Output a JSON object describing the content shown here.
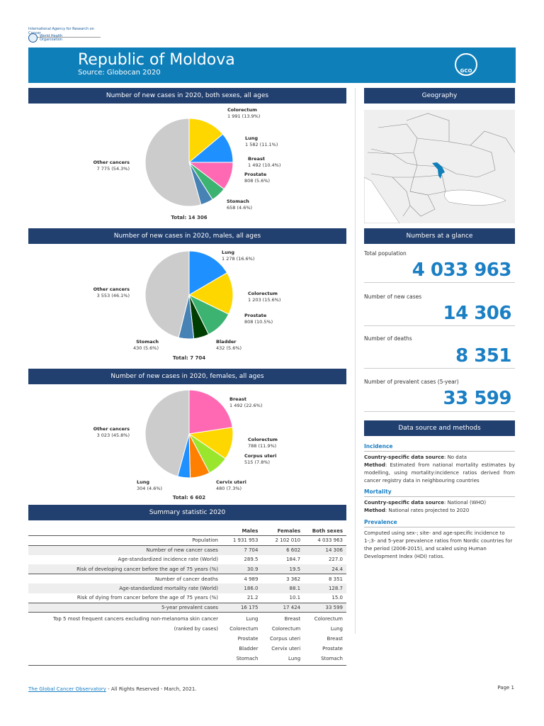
{
  "header": {
    "org_iarc": "International Agency for Research on Cancer",
    "org_who": "World Health Organization",
    "title": "Republic of Moldova",
    "source": "Source: Globocan 2020",
    "logo_text": "GCO"
  },
  "sections": {
    "pie_both": "Number of new cases in 2020, both sexes, all ages",
    "pie_males": "Number of new cases in 2020, males, all ages",
    "pie_females": "Number of new cases in 2020, females, all ages",
    "summary": "Summary statistic 2020",
    "geography": "Geography",
    "glance": "Numbers at a glance",
    "datasource": "Data source and methods"
  },
  "chart_data": [
    {
      "type": "pie",
      "title": "Number of new cases in 2020, both sexes, all ages",
      "total": "Total: 14 306",
      "slices": [
        {
          "name": "Colorectum",
          "value": 1991,
          "label": "1 991 (13.9%)",
          "color": "#ffd700"
        },
        {
          "name": "Lung",
          "value": 1582,
          "label": "1 582 (11.1%)",
          "color": "#1e90ff"
        },
        {
          "name": "Breast",
          "value": 1492,
          "label": "1 492 (10.4%)",
          "color": "#ff69b4"
        },
        {
          "name": "Prostate",
          "value": 808,
          "label": "808 (5.6%)",
          "color": "#3cb371"
        },
        {
          "name": "Stomach",
          "value": 658,
          "label": "658 (4.6%)",
          "color": "#4682b4"
        },
        {
          "name": "Other cancers",
          "value": 7775,
          "label": "7 775 (54.3%)",
          "color": "#cccccc"
        }
      ]
    },
    {
      "type": "pie",
      "title": "Number of new cases in 2020, males, all ages",
      "total": "Total: 7 704",
      "slices": [
        {
          "name": "Lung",
          "value": 1278,
          "label": "1 278 (16.6%)",
          "color": "#1e90ff"
        },
        {
          "name": "Colorectum",
          "value": 1203,
          "label": "1 203 (15.6%)",
          "color": "#ffd700"
        },
        {
          "name": "Prostate",
          "value": 808,
          "label": "808 (10.5%)",
          "color": "#3cb371"
        },
        {
          "name": "Bladder",
          "value": 432,
          "label": "432 (5.6%)",
          "color": "#003d00"
        },
        {
          "name": "Stomach",
          "value": 430,
          "label": "430 (5.6%)",
          "color": "#4682b4"
        },
        {
          "name": "Other cancers",
          "value": 3553,
          "label": "3 553 (46.1%)",
          "color": "#cccccc"
        }
      ]
    },
    {
      "type": "pie",
      "title": "Number of new cases in 2020, females, all ages",
      "total": "Total: 6 602",
      "slices": [
        {
          "name": "Breast",
          "value": 1492,
          "label": "1 492 (22.6%)",
          "color": "#ff69b4"
        },
        {
          "name": "Colorectum",
          "value": 788,
          "label": "788 (11.9%)",
          "color": "#ffd700"
        },
        {
          "name": "Corpus uteri",
          "value": 515,
          "label": "515 (7.8%)",
          "color": "#9ae62d"
        },
        {
          "name": "Cervix uteri",
          "value": 480,
          "label": "480 (7.3%)",
          "color": "#ff7f00"
        },
        {
          "name": "Lung",
          "value": 304,
          "label": "304 (4.6%)",
          "color": "#1e90ff"
        },
        {
          "name": "Other cancers",
          "value": 3023,
          "label": "3 023 (45.8%)",
          "color": "#cccccc"
        }
      ]
    }
  ],
  "glance": [
    {
      "label": "Total population",
      "value": "4 033 963"
    },
    {
      "label": "Number of new cases",
      "value": "14 306"
    },
    {
      "label": "Number of deaths",
      "value": "8 351"
    },
    {
      "label": "Number of prevalent cases (5-year)",
      "value": "33 599"
    }
  ],
  "datasource": {
    "incidence": {
      "heading": "Incidence",
      "src_label": "Country-specific data source",
      "src_value": ": No data",
      "method_label": "Method",
      "method_value": ": Estimated from national mortality estimates by modelling, using mortality:incidence ratios derived from cancer registry data in neighbouring countries"
    },
    "mortality": {
      "heading": "Mortality",
      "src_label": "Country-specific data source",
      "src_value": ": National (WHO)",
      "method_label": "Method",
      "method_value": ": National rates projected to 2020"
    },
    "prevalence": {
      "heading": "Prevalence",
      "text": "Computed using sex-; site- and age-specific incidence to 1-;3- and 5-year prevalence ratios from Nordic countries for the period (2006-2015), and scaled using Human Development Index (HDI) ratios."
    }
  },
  "summary": {
    "columns": [
      "",
      "Males",
      "Females",
      "Both sexes"
    ],
    "rows": [
      [
        "Population",
        "1 931 953",
        "2 102 010",
        "4 033 963"
      ],
      [
        "Number of new cancer cases",
        "7 704",
        "6 602",
        "14 306"
      ],
      [
        "Age-standardized incidence rate (World)",
        "289.5",
        "184.7",
        "227.0"
      ],
      [
        "Risk of developing cancer before the age of 75 years (%)",
        "30.9",
        "19.5",
        "24.4"
      ],
      [
        "Number of cancer deaths",
        "4 989",
        "3 362",
        "8 351"
      ],
      [
        "Age-standardized mortality rate (World)",
        "186.0",
        "88.1",
        "128.7"
      ],
      [
        "Risk of dying from cancer before the age of 75 years (%)",
        "21.2",
        "10.1",
        "15.0"
      ],
      [
        "5-year prevalent cases",
        "16 175",
        "17 424",
        "33 599"
      ]
    ],
    "top5": {
      "label1": "Top 5 most frequent cancers excluding non-melanoma skin cancer",
      "label2": "(ranked by cases)",
      "males": [
        "Lung",
        "Colorectum",
        "Prostate",
        "Bladder",
        "Stomach"
      ],
      "females": [
        "Breast",
        "Colorectum",
        "Corpus uteri",
        "Cervix uteri",
        "Lung"
      ],
      "both": [
        "Colorectum",
        "Lung",
        "Breast",
        "Prostate",
        "Stomach"
      ]
    }
  },
  "map": {
    "highlight_color": "#0f7fba"
  },
  "footer": {
    "link": "The Global Cancer Observatory",
    "rest": " - All Rights Reserved - March, 2021.",
    "page": "Page 1"
  }
}
